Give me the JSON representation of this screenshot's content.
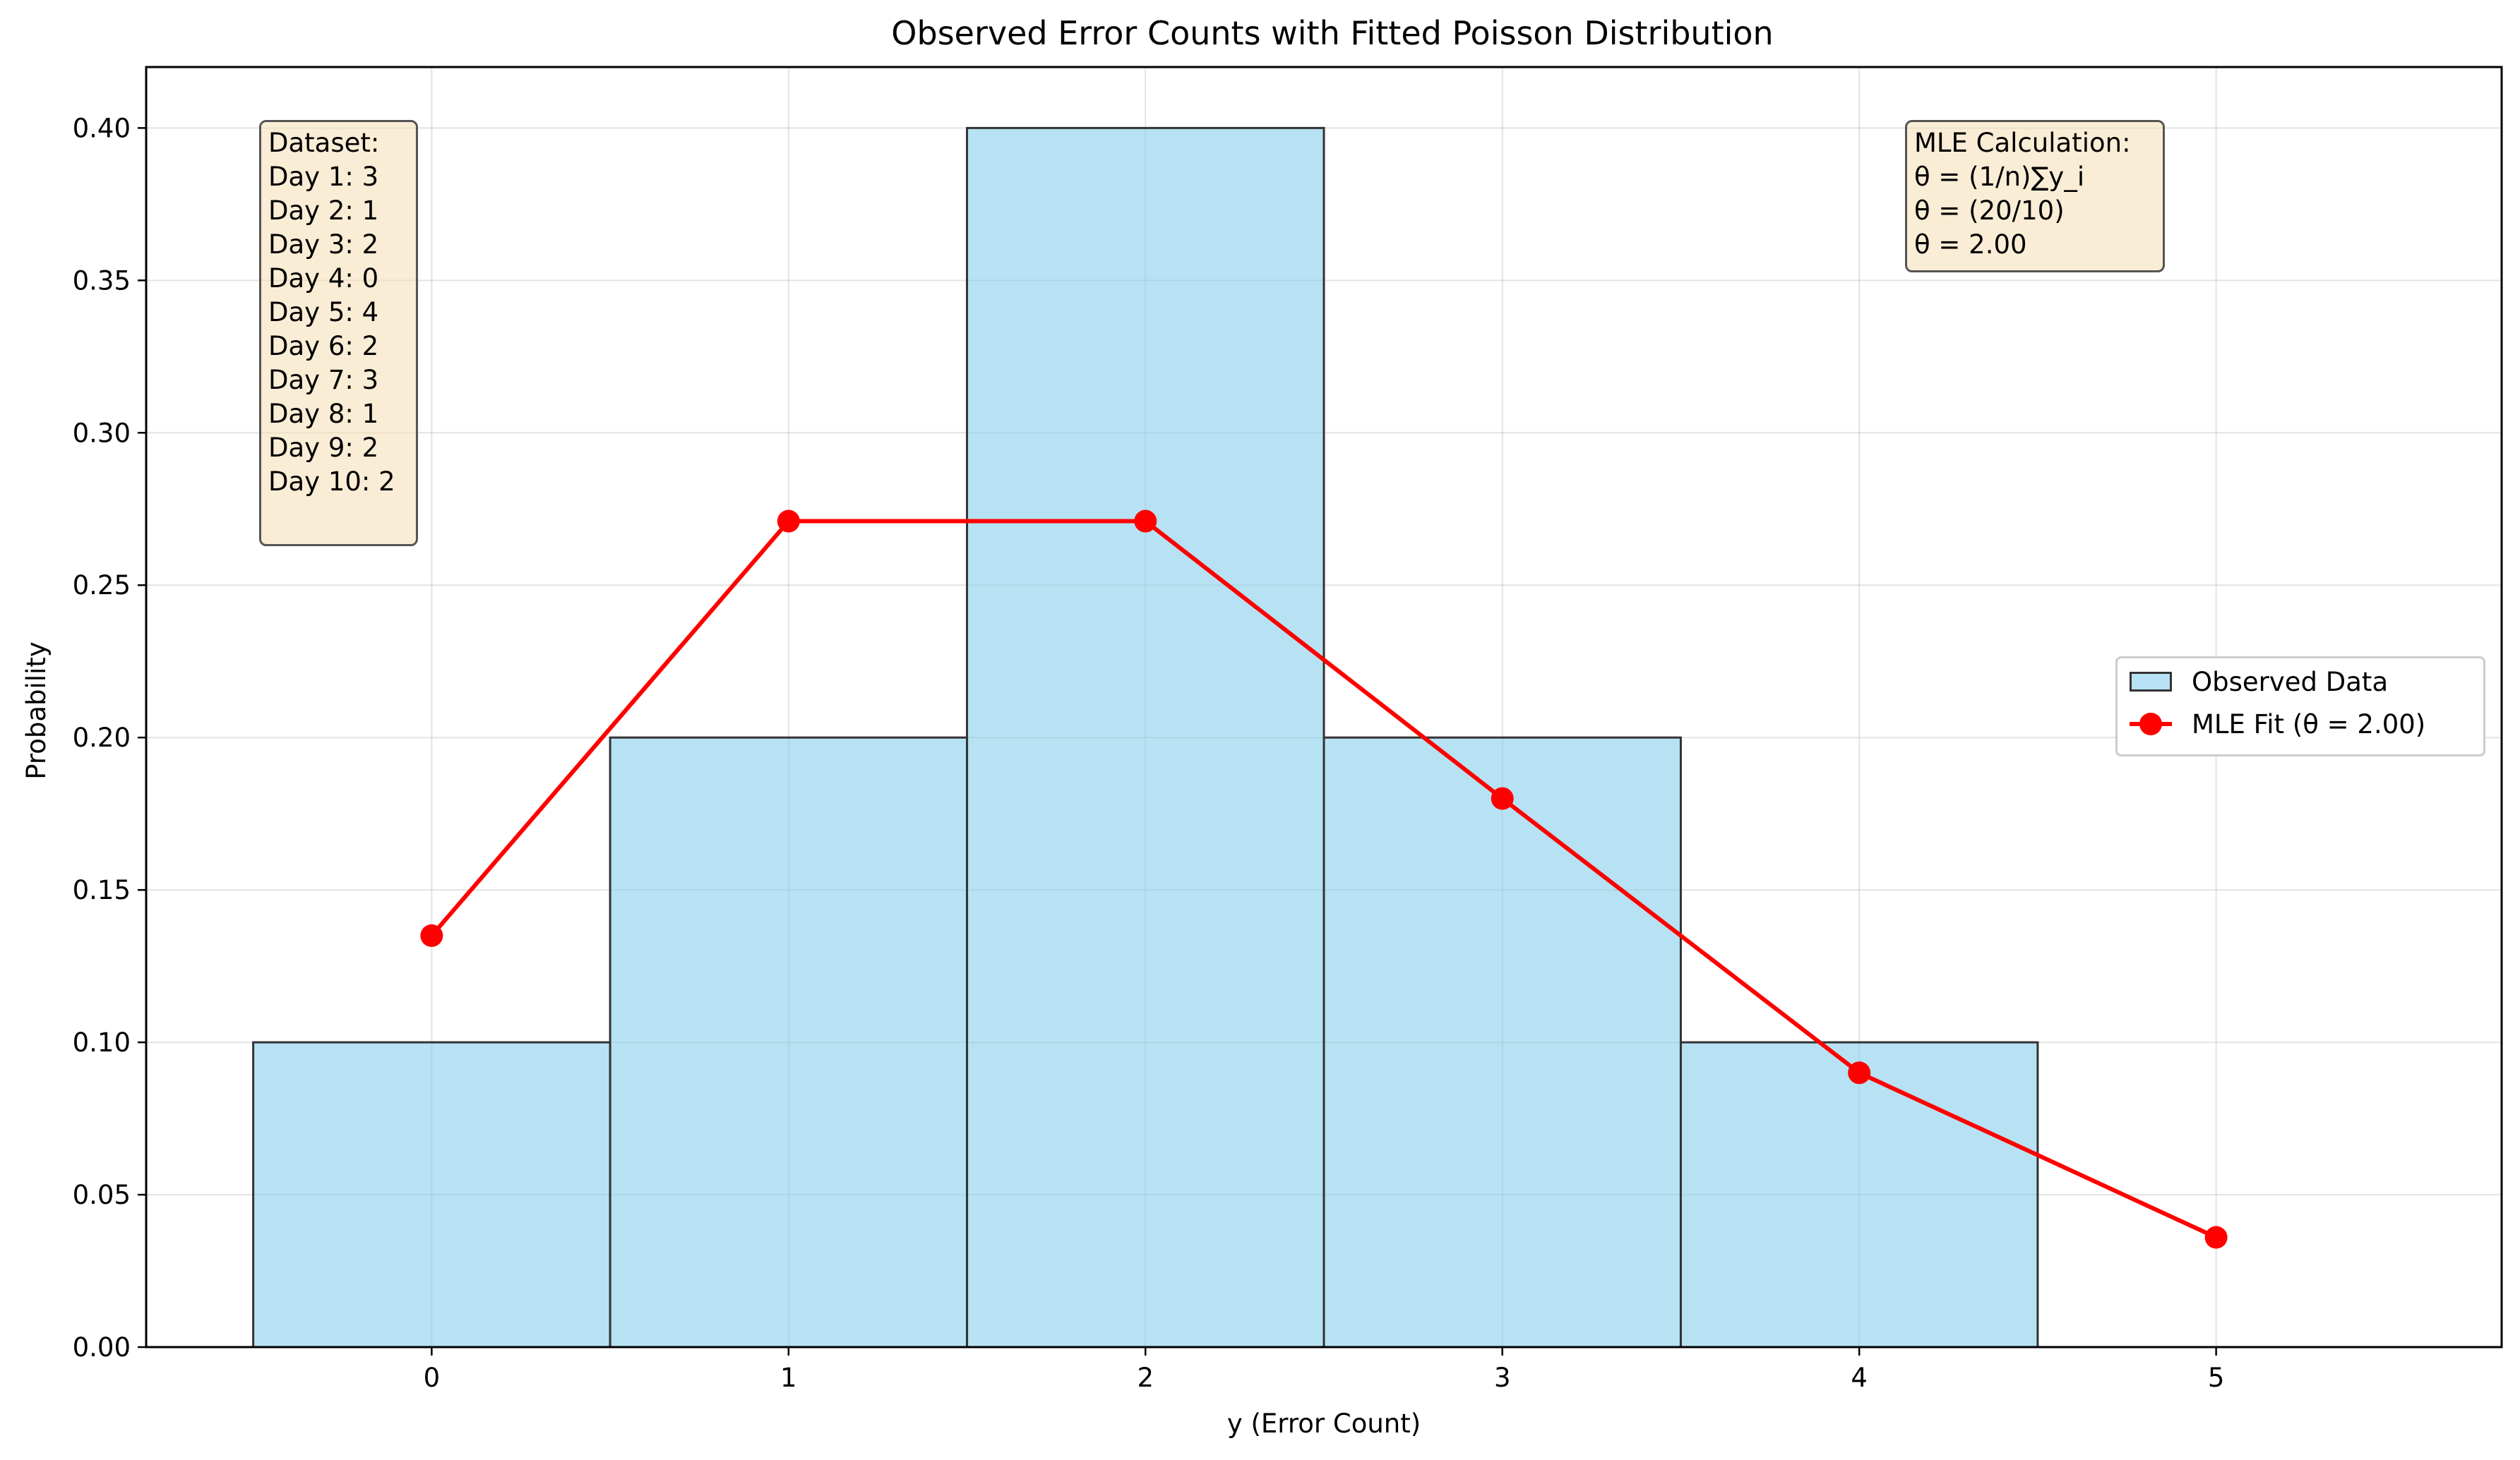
{
  "chart_data": {
    "type": "bar",
    "title": "Observed Error Counts with Fitted Poisson Distribution",
    "xlabel": "y (Error Count)",
    "ylabel": "Probability",
    "xlim": [
      -0.8,
      5.8
    ],
    "ylim": [
      0,
      0.42
    ],
    "grid": true,
    "legend_position": "center-right",
    "x_ticks": [
      "0",
      "1",
      "2",
      "3",
      "4",
      "5"
    ],
    "y_ticks": [
      "0.00",
      "0.05",
      "0.10",
      "0.15",
      "0.20",
      "0.25",
      "0.30",
      "0.35",
      "0.40"
    ],
    "series": [
      {
        "name": "Observed Data",
        "type": "bar",
        "color": "#87ceeb",
        "edgecolor": "#333333",
        "x": [
          0,
          1,
          2,
          3,
          4,
          5
        ],
        "values": [
          0.1,
          0.2,
          0.4,
          0.2,
          0.1,
          0.0
        ]
      },
      {
        "name": "MLE Fit (θ = 2.00)",
        "type": "line",
        "color": "#ff0000",
        "marker": "circle",
        "x": [
          0,
          1,
          2,
          3,
          4,
          5
        ],
        "values": [
          0.135,
          0.271,
          0.271,
          0.18,
          0.09,
          0.036
        ]
      }
    ],
    "annotations": {
      "dataset": [
        "Dataset:",
        "Day 1: 3",
        "Day 2: 1",
        "Day 3: 2",
        "Day 4: 0",
        "Day 5: 4",
        "Day 6: 2",
        "Day 7: 3",
        "Day 8: 1",
        "Day 9: 2",
        "Day 10: 2"
      ],
      "mle": [
        "MLE Calculation:",
        "θ = (1/n)∑y_i",
        "θ = (20/10)",
        "θ = 2.00"
      ]
    }
  }
}
